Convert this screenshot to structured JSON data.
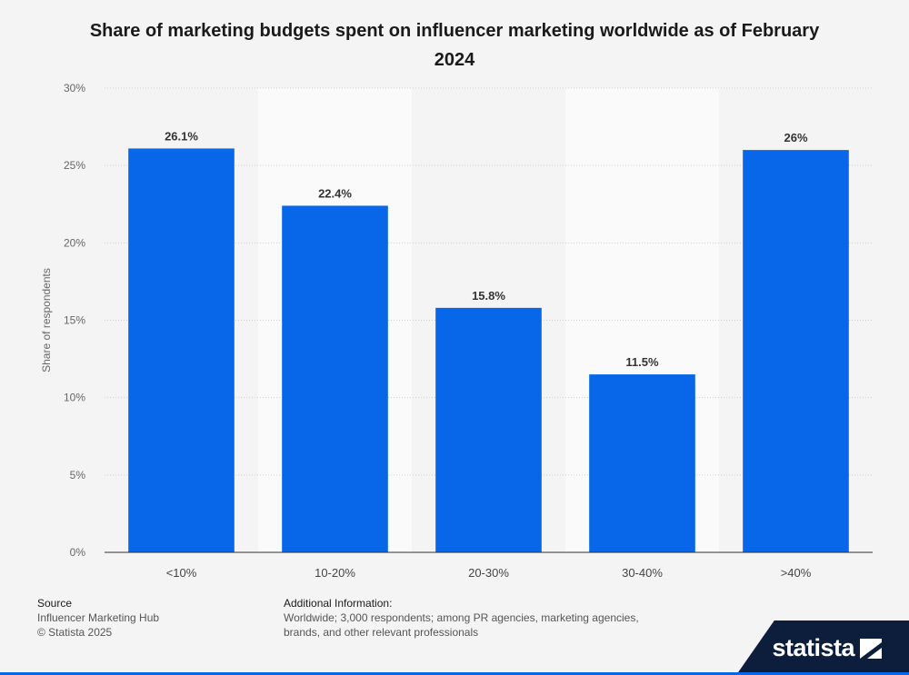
{
  "chart_data": {
    "type": "bar",
    "title": "Share of marketing budgets spent on influencer marketing worldwide as of February 2024",
    "categories": [
      "<10%",
      "10-20%",
      "20-30%",
      "30-40%",
      ">40%"
    ],
    "values": [
      26.1,
      22.4,
      15.8,
      11.5,
      26
    ],
    "data_labels": [
      "26.1%",
      "22.4%",
      "15.8%",
      "11.5%",
      "26%"
    ],
    "xlabel": "",
    "ylabel": "Share of respondents",
    "ylim": [
      0,
      30
    ],
    "yticks": [
      0,
      5,
      10,
      15,
      20,
      25,
      30
    ],
    "ytick_labels": [
      "0%",
      "5%",
      "10%",
      "15%",
      "20%",
      "25%",
      "30%"
    ],
    "bar_color": "#0866e8",
    "grid": true
  },
  "footer": {
    "source_heading": "Source",
    "source_lines": [
      "Influencer Marketing Hub",
      "© Statista 2025"
    ],
    "info_heading": "Additional Information:",
    "info_text": "Worldwide; 3,000 respondents; among PR agencies, marketing agencies, brands, and other relevant professionals"
  },
  "brand": {
    "name": "statista"
  }
}
